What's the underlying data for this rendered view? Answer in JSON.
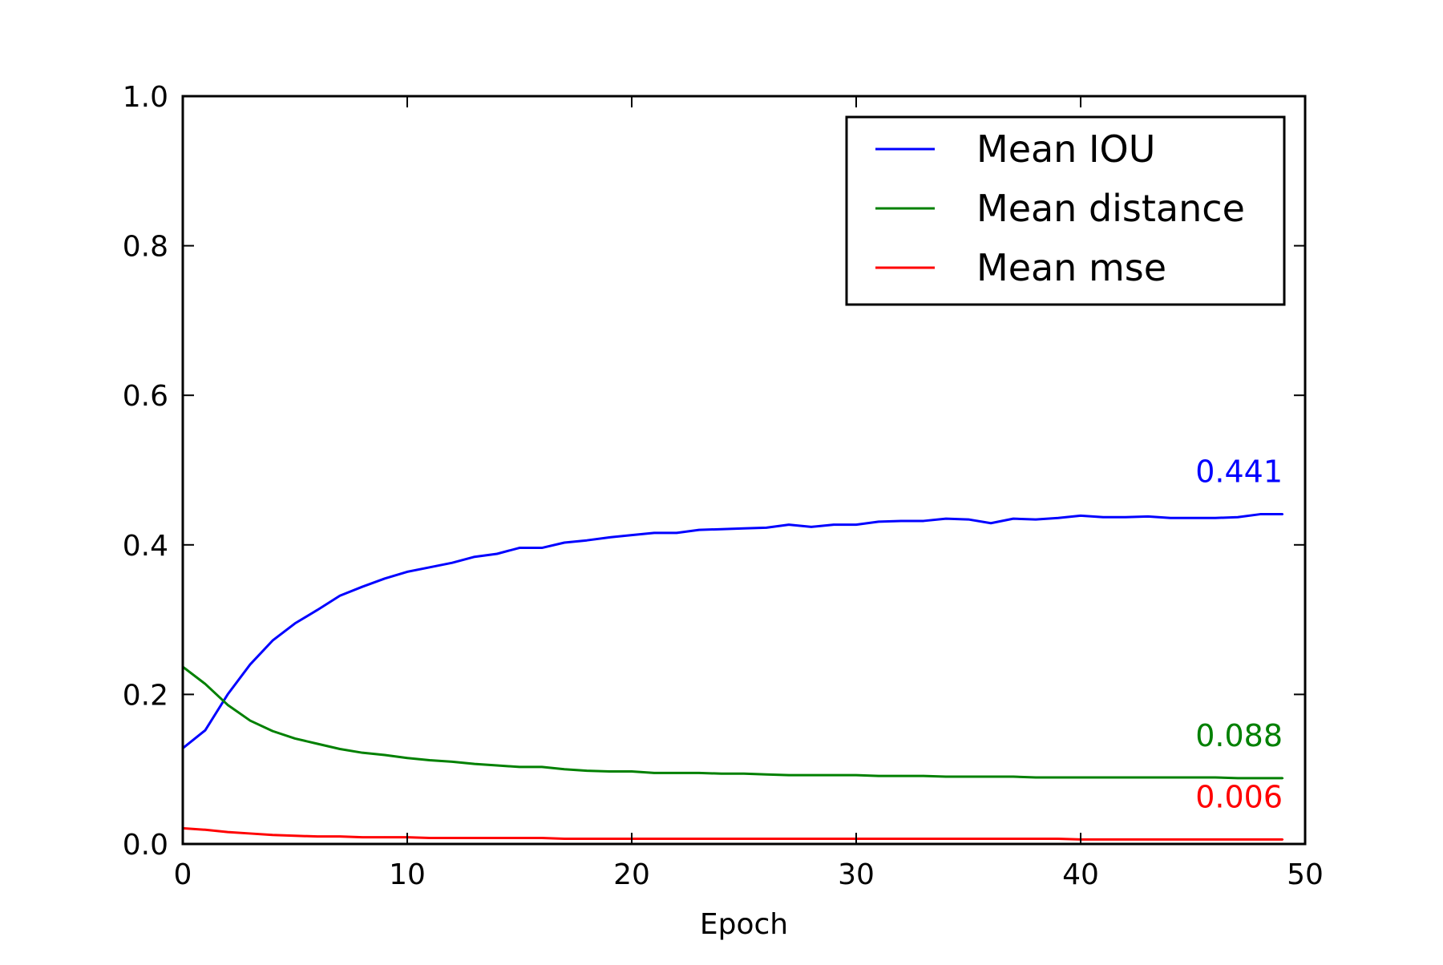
{
  "chart_data": {
    "type": "line",
    "title": "",
    "xlabel": "Epoch",
    "ylabel": "",
    "xlim": [
      0,
      50
    ],
    "ylim": [
      0,
      1.0
    ],
    "x_ticks": [
      0,
      10,
      20,
      30,
      40,
      50
    ],
    "x_tick_labels": [
      "0",
      "10",
      "20",
      "30",
      "40",
      "50"
    ],
    "y_ticks": [
      0,
      0.2,
      0.4,
      0.6,
      0.8,
      1.0
    ],
    "y_tick_labels": [
      "0.0",
      "0.2",
      "0.4",
      "0.6",
      "0.8",
      "1.0"
    ],
    "grid": false,
    "legend_position": "top-right",
    "x": [
      0,
      1,
      2,
      3,
      4,
      5,
      6,
      7,
      8,
      9,
      10,
      11,
      12,
      13,
      14,
      15,
      16,
      17,
      18,
      19,
      20,
      21,
      22,
      23,
      24,
      25,
      26,
      27,
      28,
      29,
      30,
      31,
      32,
      33,
      34,
      35,
      36,
      37,
      38,
      39,
      40,
      41,
      42,
      43,
      44,
      45,
      46,
      47,
      48,
      49
    ],
    "series": [
      {
        "name": "Mean IOU",
        "color": "#0000ff",
        "final_label": "0.441",
        "values": [
          0.128,
          0.152,
          0.2,
          0.24,
          0.272,
          0.295,
          0.313,
          0.332,
          0.344,
          0.355,
          0.364,
          0.37,
          0.376,
          0.384,
          0.388,
          0.396,
          0.396,
          0.403,
          0.406,
          0.41,
          0.413,
          0.416,
          0.416,
          0.42,
          0.421,
          0.422,
          0.423,
          0.427,
          0.424,
          0.427,
          0.427,
          0.431,
          0.432,
          0.432,
          0.435,
          0.434,
          0.429,
          0.435,
          0.434,
          0.436,
          0.439,
          0.437,
          0.437,
          0.438,
          0.436,
          0.436,
          0.436,
          0.437,
          0.441,
          0.441
        ]
      },
      {
        "name": "Mean distance",
        "color": "#008000",
        "final_label": "0.088",
        "values": [
          0.237,
          0.214,
          0.186,
          0.165,
          0.151,
          0.141,
          0.134,
          0.127,
          0.122,
          0.119,
          0.115,
          0.112,
          0.11,
          0.107,
          0.105,
          0.103,
          0.103,
          0.1,
          0.098,
          0.097,
          0.097,
          0.095,
          0.095,
          0.095,
          0.094,
          0.094,
          0.093,
          0.092,
          0.092,
          0.092,
          0.092,
          0.091,
          0.091,
          0.091,
          0.09,
          0.09,
          0.09,
          0.09,
          0.089,
          0.089,
          0.089,
          0.089,
          0.089,
          0.089,
          0.089,
          0.089,
          0.089,
          0.088,
          0.088,
          0.088
        ]
      },
      {
        "name": "Mean mse",
        "color": "#ff0000",
        "final_label": "0.006",
        "values": [
          0.021,
          0.019,
          0.016,
          0.014,
          0.012,
          0.011,
          0.01,
          0.01,
          0.009,
          0.009,
          0.009,
          0.008,
          0.008,
          0.008,
          0.008,
          0.008,
          0.008,
          0.007,
          0.007,
          0.007,
          0.007,
          0.007,
          0.007,
          0.007,
          0.007,
          0.007,
          0.007,
          0.007,
          0.007,
          0.007,
          0.007,
          0.007,
          0.007,
          0.007,
          0.007,
          0.007,
          0.007,
          0.007,
          0.007,
          0.007,
          0.006,
          0.006,
          0.006,
          0.006,
          0.006,
          0.006,
          0.006,
          0.006,
          0.006,
          0.006
        ]
      }
    ]
  }
}
